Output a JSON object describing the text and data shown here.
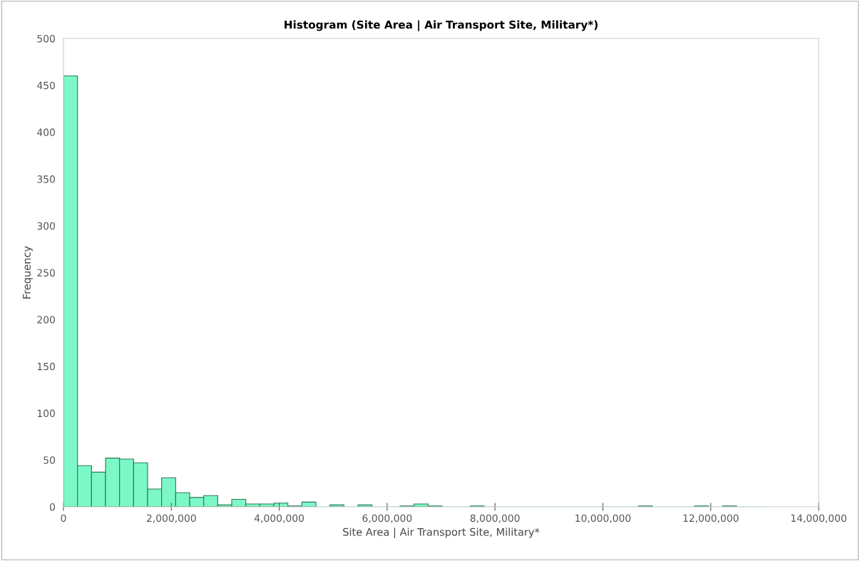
{
  "chart_data": {
    "type": "histogram",
    "title": "Histogram (Site Area | Air Transport Site, Military*)",
    "xlabel": "Site Area | Air Transport Site, Military*",
    "ylabel": "Frequency",
    "bins": [
      0,
      260000,
      520000,
      780000,
      1040000,
      1300000,
      1560000,
      1820000,
      2080000,
      2340000,
      2600000,
      2860000,
      3120000,
      3380000,
      3640000,
      3900000,
      4160000,
      4420000,
      4680000,
      4940000,
      5200000,
      5460000,
      5720000,
      5980000,
      6240000,
      6500000,
      6760000,
      7020000,
      7280000,
      7540000,
      7800000,
      8060000,
      8320000,
      8580000,
      8840000,
      9100000,
      9360000,
      9620000,
      9880000,
      10140000,
      10400000,
      10660000,
      10920000,
      11180000,
      11440000,
      11700000,
      11960000,
      12220000,
      12480000,
      12740000,
      13000000
    ],
    "values": [
      460,
      44,
      37,
      52,
      51,
      47,
      19,
      31,
      15,
      10,
      12,
      2,
      8,
      3,
      3,
      4,
      1,
      5,
      0,
      2,
      0,
      2,
      0,
      0,
      1,
      3,
      1,
      0,
      0,
      1,
      0,
      0,
      0,
      0,
      0,
      0,
      0,
      0,
      0,
      0,
      0,
      1,
      0,
      0,
      0,
      1,
      0,
      1,
      0,
      0
    ],
    "color": "#7cf8c8",
    "xlim": [
      0,
      14000000
    ],
    "xticks": [
      {
        "value": 0,
        "label": "0"
      },
      {
        "value": 2000000,
        "label": "2,000,000"
      },
      {
        "value": 4000000,
        "label": "4,000,000"
      },
      {
        "value": 6000000,
        "label": "6,000,000"
      },
      {
        "value": 8000000,
        "label": "8,000,000"
      },
      {
        "value": 10000000,
        "label": "10,000,000"
      },
      {
        "value": 12000000,
        "label": "12,000,000"
      },
      {
        "value": 14000000,
        "label": "14,000,000"
      }
    ],
    "ylim": [
      0,
      500
    ],
    "yticks": [
      0,
      50,
      100,
      150,
      200,
      250,
      300,
      350,
      400,
      450,
      500
    ],
    "grid": false
  }
}
